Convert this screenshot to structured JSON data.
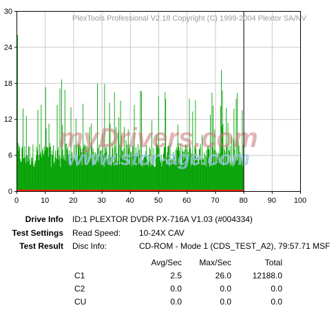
{
  "chart_data": {
    "type": "bar",
    "title": "PlexTools Professional V2.18 Copyright (C) 1999-2004 Plextor SA/NV",
    "watermark": [
      "myDrivers.com",
      "www.stor-age.com"
    ],
    "xlim": [
      0,
      100
    ],
    "ylim": [
      0,
      30
    ],
    "xticks": [
      0,
      10,
      20,
      30,
      40,
      50,
      60,
      70,
      80,
      90,
      100
    ],
    "yticks": [
      0,
      6,
      12,
      18,
      24,
      30
    ],
    "grid": true,
    "marker_x": 80,
    "series": [
      {
        "name": "C1",
        "color": "#00a000",
        "x_range": [
          0,
          80
        ],
        "avg": 2.5,
        "max": 26.0,
        "total": 12188.0
      },
      {
        "name": "C2",
        "color": "#ff2000",
        "x_range": [
          0,
          80
        ],
        "avg": 0.0,
        "max": 0.0,
        "total": 0.0
      }
    ]
  },
  "info": {
    "drive_label": "Drive Info",
    "drive_value": "ID:1 PLEXTOR DVDR PX-716A V1.03 (#004334)",
    "settings_label": "Test Settings",
    "settings_key": "Read Speed:",
    "settings_value": "10-24X CAV",
    "result_label": "Test Result",
    "result_key": "Disc Info:",
    "result_value": "CD-ROM - Mode 1 (CDS_TEST_A2), 79:57.71 MSF"
  },
  "stats": {
    "headers": [
      "Avg/Sec",
      "Max/Sec",
      "Total"
    ],
    "rows": [
      {
        "name": "C1",
        "avg": "2.5",
        "max": "26.0",
        "total": "12188.0"
      },
      {
        "name": "C2",
        "avg": "0.0",
        "max": "0.0",
        "total": "0.0"
      },
      {
        "name": "CU",
        "avg": "0.0",
        "max": "0.0",
        "total": "0.0"
      }
    ]
  }
}
